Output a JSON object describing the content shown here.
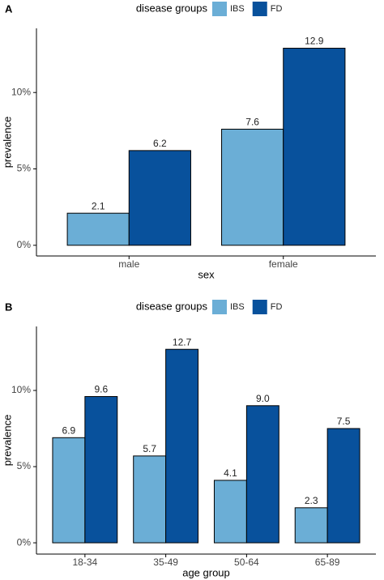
{
  "chart_data": [
    {
      "type": "bar",
      "panel": "A",
      "legend_title": "disease groups",
      "xlabel": "sex",
      "ylabel": "prevalence",
      "categories": [
        "male",
        "female"
      ],
      "series": [
        {
          "name": "IBS",
          "color": "#6baed6",
          "values": [
            2.1,
            7.6
          ]
        },
        {
          "name": "FD",
          "color": "#08519c",
          "values": [
            6.2,
            12.9
          ]
        }
      ],
      "ylim": [
        -0.7,
        14.2
      ],
      "yticks": [
        {
          "value": 0,
          "label": "0%"
        },
        {
          "value": 5,
          "label": "5%"
        },
        {
          "value": 10,
          "label": "10%"
        }
      ],
      "grid": false,
      "legend": "top"
    },
    {
      "type": "bar",
      "panel": "B",
      "legend_title": "disease groups",
      "xlabel": "age group",
      "ylabel": "prevalence",
      "categories": [
        "18-34",
        "35-49",
        "50-64",
        "65-89"
      ],
      "series": [
        {
          "name": "IBS",
          "color": "#6baed6",
          "values": [
            6.9,
            5.7,
            4.1,
            2.3
          ]
        },
        {
          "name": "FD",
          "color": "#08519c",
          "values": [
            9.6,
            12.7,
            9,
            7.5
          ],
          "value_labels": [
            "9.6",
            "12.7",
            "9.0",
            "7.5"
          ]
        }
      ],
      "ylim": [
        -0.74,
        14.2
      ],
      "yticks": [
        {
          "value": 0,
          "label": "0%"
        },
        {
          "value": 5,
          "label": "5%"
        },
        {
          "value": 10,
          "label": "10%"
        }
      ],
      "grid": false,
      "legend": "top"
    }
  ]
}
